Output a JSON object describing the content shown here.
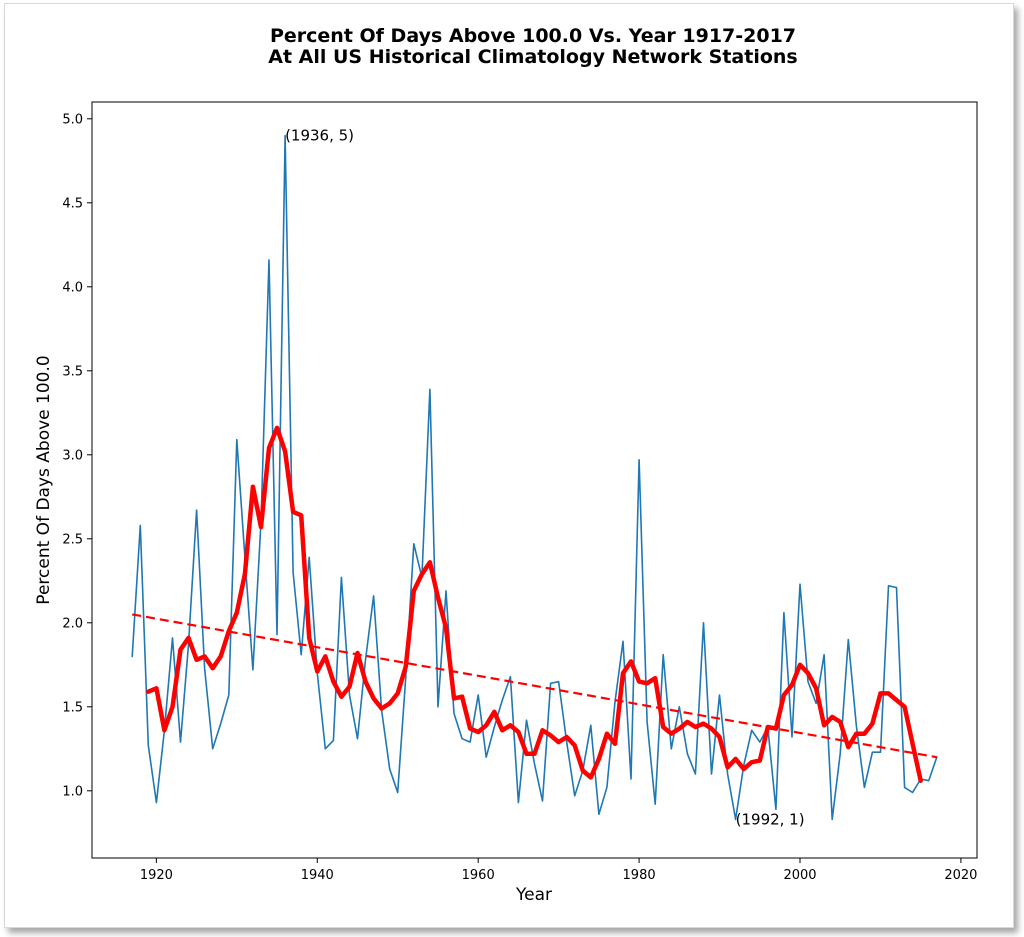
{
  "chart_data": {
    "type": "line",
    "title": "Percent Of Days Above 100.0 Vs. Year 1917-2017",
    "subtitle": "At All US Historical Climatology Network Stations",
    "xlabel": "Year",
    "ylabel": "Percent Of Days Above 100.0",
    "xlim": [
      1912,
      2022
    ],
    "ylim": [
      0.6,
      5.1
    ],
    "xticks": [
      1920,
      1940,
      1960,
      1980,
      2000,
      2020
    ],
    "yticks": [
      "1.0",
      "1.5",
      "2.0",
      "2.5",
      "3.0",
      "3.5",
      "4.0",
      "4.5",
      "5.0"
    ],
    "grid": false,
    "series": [
      {
        "role": "annual",
        "color": "#1f77b4",
        "x": [
          1917,
          1918,
          1919,
          1920,
          1921,
          1922,
          1923,
          1924,
          1925,
          1926,
          1927,
          1928,
          1929,
          1930,
          1931,
          1932,
          1933,
          1934,
          1935,
          1936,
          1937,
          1938,
          1939,
          1940,
          1941,
          1942,
          1943,
          1944,
          1945,
          1946,
          1947,
          1948,
          1949,
          1950,
          1951,
          1952,
          1953,
          1954,
          1955,
          1956,
          1957,
          1958,
          1959,
          1960,
          1961,
          1962,
          1963,
          1964,
          1965,
          1966,
          1967,
          1968,
          1969,
          1970,
          1971,
          1972,
          1973,
          1974,
          1975,
          1976,
          1977,
          1978,
          1979,
          1980,
          1981,
          1982,
          1983,
          1984,
          1985,
          1986,
          1987,
          1988,
          1989,
          1990,
          1991,
          1992,
          1993,
          1994,
          1995,
          1996,
          1997,
          1998,
          1999,
          2000,
          2001,
          2002,
          2003,
          2004,
          2005,
          2006,
          2007,
          2008,
          2009,
          2010,
          2011,
          2012,
          2013,
          2014,
          2015,
          2016,
          2017
        ],
        "y": [
          1.8,
          2.58,
          1.27,
          0.93,
          1.36,
          1.91,
          1.29,
          1.87,
          2.67,
          1.73,
          1.25,
          1.4,
          1.57,
          3.09,
          2.39,
          1.72,
          2.6,
          4.16,
          1.93,
          4.9,
          2.3,
          1.81,
          2.39,
          1.7,
          1.25,
          1.3,
          2.27,
          1.57,
          1.31,
          1.78,
          2.16,
          1.48,
          1.13,
          0.99,
          1.68,
          2.47,
          2.27,
          3.39,
          1.5,
          2.19,
          1.46,
          1.31,
          1.29,
          1.57,
          1.2,
          1.38,
          1.54,
          1.68,
          0.93,
          1.42,
          1.16,
          0.94,
          1.64,
          1.65,
          1.29,
          0.97,
          1.12,
          1.39,
          0.86,
          1.02,
          1.53,
          1.89,
          1.07,
          2.97,
          1.41,
          0.92,
          1.81,
          1.25,
          1.5,
          1.22,
          1.1,
          2.0,
          1.1,
          1.57,
          1.1,
          0.83,
          1.15,
          1.36,
          1.29,
          1.38,
          0.89,
          2.06,
          1.32,
          2.23,
          1.65,
          1.52,
          1.81,
          0.83,
          1.22,
          1.9,
          1.39,
          1.02,
          1.23,
          1.23,
          2.22,
          2.21,
          1.02,
          0.99,
          1.07,
          1.06,
          1.2
        ]
      },
      {
        "role": "running-mean",
        "color": "#ff0000",
        "x": [
          1919,
          1920,
          1921,
          1922,
          1923,
          1924,
          1925,
          1926,
          1927,
          1928,
          1929,
          1930,
          1931,
          1932,
          1933,
          1934,
          1935,
          1936,
          1937,
          1938,
          1939,
          1940,
          1941,
          1942,
          1943,
          1944,
          1945,
          1946,
          1947,
          1948,
          1949,
          1950,
          1951,
          1952,
          1953,
          1954,
          1955,
          1956,
          1957,
          1958,
          1959,
          1960,
          1961,
          1962,
          1963,
          1964,
          1965,
          1966,
          1967,
          1968,
          1969,
          1970,
          1971,
          1972,
          1973,
          1974,
          1975,
          1976,
          1977,
          1978,
          1979,
          1980,
          1981,
          1982,
          1983,
          1984,
          1985,
          1986,
          1987,
          1988,
          1989,
          1990,
          1991,
          1992,
          1993,
          1994,
          1995,
          1996,
          1997,
          1998,
          1999,
          2000,
          2001,
          2002,
          2003,
          2004,
          2005,
          2006,
          2007,
          2008,
          2009,
          2010,
          2011,
          2012,
          2013,
          2014,
          2015
        ],
        "y": [
          1.59,
          1.61,
          1.36,
          1.5,
          1.84,
          1.91,
          1.78,
          1.8,
          1.73,
          1.8,
          1.95,
          2.06,
          2.29,
          2.81,
          2.57,
          3.04,
          3.16,
          3.02,
          2.66,
          2.64,
          1.91,
          1.71,
          1.8,
          1.65,
          1.56,
          1.62,
          1.82,
          1.65,
          1.55,
          1.49,
          1.52,
          1.58,
          1.74,
          2.19,
          2.29,
          2.36,
          2.15,
          1.97,
          1.55,
          1.56,
          1.37,
          1.35,
          1.39,
          1.47,
          1.36,
          1.39,
          1.35,
          1.22,
          1.22,
          1.36,
          1.33,
          1.29,
          1.32,
          1.27,
          1.12,
          1.08,
          1.19,
          1.34,
          1.28,
          1.7,
          1.77,
          1.65,
          1.64,
          1.67,
          1.38,
          1.34,
          1.37,
          1.41,
          1.38,
          1.4,
          1.37,
          1.32,
          1.14,
          1.19,
          1.13,
          1.17,
          1.18,
          1.38,
          1.37,
          1.57,
          1.63,
          1.75,
          1.7,
          1.61,
          1.39,
          1.44,
          1.41,
          1.26,
          1.34,
          1.34,
          1.4,
          1.58,
          1.58,
          1.54,
          1.5,
          1.28,
          1.06
        ]
      },
      {
        "role": "linear-trend",
        "color": "#ff0000",
        "dashed": true,
        "x": [
          1917,
          2017
        ],
        "y": [
          2.05,
          1.2
        ]
      }
    ],
    "annotations": [
      {
        "text": "(1936, 5)",
        "x": 1936,
        "y": 4.9
      },
      {
        "text": "(1992, 1)",
        "x": 1992,
        "y": 0.83
      }
    ]
  }
}
